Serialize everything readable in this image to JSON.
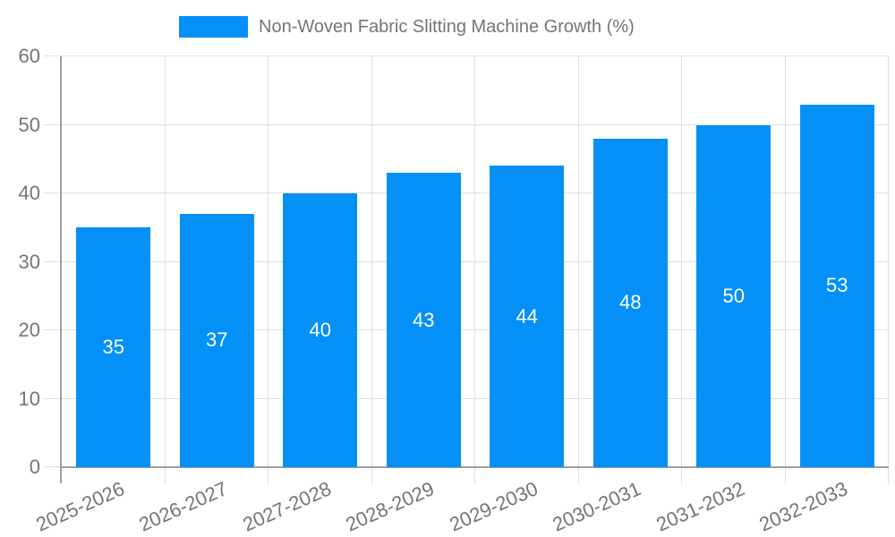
{
  "page": {
    "background": "#FFFFFF"
  },
  "colors": {
    "bar": "#0590F8",
    "axis_line": "#9E9E9E",
    "grid_line": "#E0E0E0",
    "tick_label": "#757575",
    "legend_text": "#757575",
    "value_label": "#FFFFFF"
  },
  "legend": {
    "label": "Non-Woven Fabric Slitting Machine Growth (%)",
    "swatch_color": "#0590F8"
  },
  "chart_data": {
    "type": "bar",
    "title": "",
    "xlabel": "",
    "ylabel": "",
    "categories": [
      "2025-2026",
      "2026-2027",
      "2027-2028",
      "2028-2029",
      "2029-2030",
      "2030-2031",
      "2031-2032",
      "2032-2033"
    ],
    "series": [
      {
        "name": "Non-Woven Fabric Slitting Machine Growth (%)",
        "color": "#0590F8",
        "values": [
          35,
          37,
          40,
          43,
          44,
          48,
          50,
          53
        ]
      }
    ],
    "ylim": [
      0,
      60
    ],
    "yticks": [
      0,
      10,
      20,
      30,
      40,
      50,
      60
    ],
    "grid": true,
    "value_label_position": "inside-center",
    "x_tick_label_rotation_deg": -24,
    "legend_position": "top-center"
  }
}
